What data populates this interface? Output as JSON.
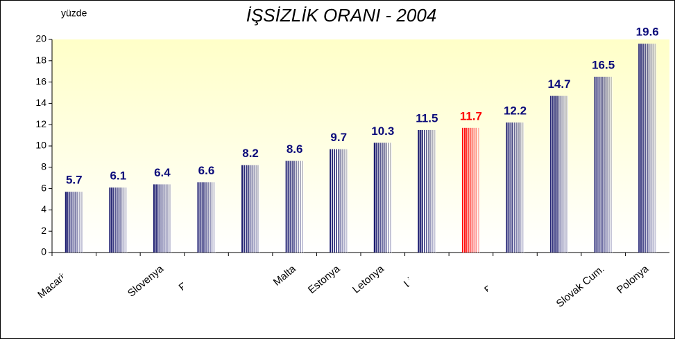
{
  "chart_data": {
    "type": "bar",
    "title": "İŞSİZLİK ORANI - 2004",
    "y_label": "yüzde",
    "categories": [
      "Macarista",
      null,
      "Slovenya",
      "Roman",
      null,
      "Malta",
      "Estonya",
      "Letonya",
      "Litvan",
      null,
      "Bulgaris",
      null,
      "Slovak Cum.",
      "Polonya"
    ],
    "values": [
      5.7,
      6.1,
      6.4,
      6.6,
      8.2,
      8.6,
      9.7,
      10.3,
      11.5,
      11.7,
      12.2,
      14.7,
      16.5,
      19.6
    ],
    "colors": [
      "#1a1a6e",
      "#1a1a6e",
      "#1a1a6e",
      "#1a1a6e",
      "#1a1a6e",
      "#1a1a6e",
      "#1a1a6e",
      "#1a1a6e",
      "#1a1a6e",
      "#ff0000",
      "#1a1a6e",
      "#1a1a6e",
      "#1a1a6e",
      "#1a1a6e"
    ],
    "ylim": [
      0,
      20
    ],
    "yticks": [
      0,
      2,
      4,
      6,
      8,
      10,
      12,
      14,
      16,
      18,
      20
    ],
    "grid": false
  }
}
